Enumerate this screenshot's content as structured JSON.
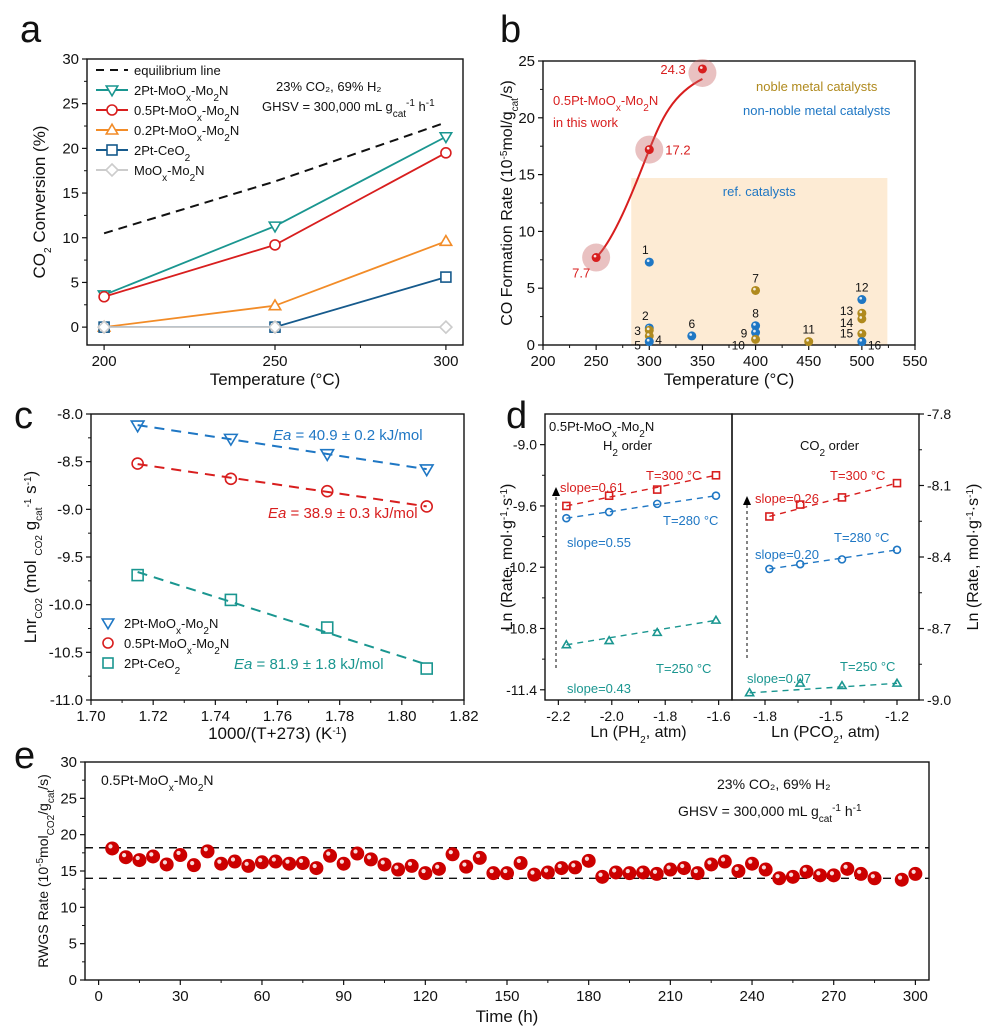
{
  "chart_data": [
    {
      "panel": "a",
      "type": "line",
      "title": "",
      "xlabel": "Temperature (°C)",
      "ylabel": "CO2 Conversion (%)",
      "xlim": [
        195,
        305
      ],
      "ylim": [
        -2,
        30
      ],
      "xticks": [
        200,
        250,
        300
      ],
      "yticks": [
        0,
        5,
        10,
        15,
        20,
        25,
        30
      ],
      "x": [
        200,
        250,
        300
      ],
      "annotations": [
        "23% CO2, 69% H2",
        "GHSV = 300,000 mL gcat-1 h-1"
      ],
      "legend_position": "top-left",
      "series": [
        {
          "name": "equilibrium line",
          "style": "dashed",
          "color": "#111111",
          "marker": "none",
          "values": [
            10.5,
            16.3,
            22.9
          ]
        },
        {
          "name": "2Pt-MoOx-Mo2N",
          "color": "#1a9690",
          "marker": "triangle-down",
          "values": [
            3.6,
            11.3,
            21.3
          ]
        },
        {
          "name": "0.5Pt-MoOx-Mo2N",
          "color": "#d81e1e",
          "marker": "circle",
          "values": [
            3.4,
            9.2,
            19.5
          ]
        },
        {
          "name": "0.2Pt-MoOx-Mo2N",
          "color": "#f28c28",
          "marker": "triangle-up",
          "values": [
            0.0,
            2.4,
            9.6
          ]
        },
        {
          "name": "2Pt-CeO2",
          "color": "#165a8c",
          "marker": "square",
          "values": [
            0.0,
            0.0,
            5.6
          ]
        },
        {
          "name": "MoOx-Mo2N",
          "color": "#cccccc",
          "marker": "diamond",
          "values": [
            0.0,
            0.0,
            0.0
          ]
        }
      ]
    },
    {
      "panel": "b",
      "type": "scatter",
      "xlabel": "Temperature (°C)",
      "ylabel": "CO Formation Rate (10^-5 mol/gcat/s)",
      "xlim": [
        200,
        550
      ],
      "ylim": [
        0,
        25
      ],
      "xticks": [
        200,
        250,
        300,
        350,
        400,
        450,
        500,
        550
      ],
      "yticks": [
        0,
        5,
        10,
        15,
        20,
        25
      ],
      "legend": [
        {
          "name": "noble metal catalysts",
          "color": "#b08a1e"
        },
        {
          "name": "non-noble metal catalysts",
          "color": "#1f77c4"
        }
      ],
      "highlight_label": [
        "0.5Pt-MoOx-Mo2N",
        "in this work"
      ],
      "ref_box_label": "ref. catalysts",
      "this_work": {
        "name": "0.5Pt-MoOx-Mo2N",
        "color": "#d81e1e",
        "points": [
          {
            "x": 250,
            "y": 7.7,
            "label": "7.7"
          },
          {
            "x": 300,
            "y": 17.2,
            "label": "17.2"
          },
          {
            "x": 350,
            "y": 24.3,
            "label": "24.3"
          }
        ]
      },
      "ref_points": [
        {
          "id": "1",
          "x": 300,
          "y": 7.3,
          "type": "non-noble"
        },
        {
          "id": "2",
          "x": 300,
          "y": 1.5,
          "type": "non-noble"
        },
        {
          "id": "3",
          "x": 300,
          "y": 1.3,
          "type": "noble"
        },
        {
          "id": "4",
          "x": 300,
          "y": 0.8,
          "type": "noble"
        },
        {
          "id": "5",
          "x": 300,
          "y": 0.3,
          "type": "non-noble"
        },
        {
          "id": "6",
          "x": 340,
          "y": 0.8,
          "type": "non-noble"
        },
        {
          "id": "7",
          "x": 400,
          "y": 4.8,
          "type": "noble"
        },
        {
          "id": "8",
          "x": 400,
          "y": 1.7,
          "type": "non-noble"
        },
        {
          "id": "9",
          "x": 400,
          "y": 1.1,
          "type": "non-noble"
        },
        {
          "id": "10",
          "x": 400,
          "y": 0.5,
          "type": "noble"
        },
        {
          "id": "11",
          "x": 450,
          "y": 0.3,
          "type": "noble"
        },
        {
          "id": "12",
          "x": 500,
          "y": 4.0,
          "type": "non-noble"
        },
        {
          "id": "13",
          "x": 500,
          "y": 2.8,
          "type": "noble"
        },
        {
          "id": "14",
          "x": 500,
          "y": 2.3,
          "type": "noble"
        },
        {
          "id": "15",
          "x": 500,
          "y": 1.0,
          "type": "noble"
        },
        {
          "id": "16",
          "x": 500,
          "y": 0.3,
          "type": "non-noble"
        }
      ]
    },
    {
      "panel": "c",
      "type": "scatter",
      "xlabel": "1000/(T+273) (K-1)",
      "ylabel": "LnrCO2 (mol CO2 gcat-1 s-1)",
      "xlim": [
        1.7,
        1.82
      ],
      "ylim": [
        -11.0,
        -8.0
      ],
      "xticks": [
        1.7,
        1.72,
        1.74,
        1.76,
        1.78,
        1.8,
        1.82
      ],
      "yticks": [
        -11.0,
        -10.5,
        -10.0,
        -9.5,
        -9.0,
        -8.5,
        -8.0
      ],
      "legend_position": "bottom-left",
      "series": [
        {
          "name": "2Pt-MoOx-Mo2N",
          "color": "#1f77c4",
          "marker": "triangle-down",
          "x": [
            1.715,
            1.745,
            1.776,
            1.808
          ],
          "values": [
            -8.12,
            -8.26,
            -8.42,
            -8.58
          ],
          "fit_label": "Ea = 40.9 ± 0.2 kJ/mol"
        },
        {
          "name": "0.5Pt-MoOx-Mo2N",
          "color": "#d81e1e",
          "marker": "circle",
          "x": [
            1.715,
            1.745,
            1.776,
            1.808
          ],
          "values": [
            -8.52,
            -8.68,
            -8.81,
            -8.97
          ],
          "fit_label": "Ea = 38.9 ± 0.3 kJ/mol"
        },
        {
          "name": "2Pt-CeO2",
          "color": "#1a9690",
          "marker": "square",
          "x": [
            1.715,
            1.745,
            1.776,
            1.808
          ],
          "values": [
            -9.69,
            -9.95,
            -10.24,
            -10.67
          ],
          "fit_label": "Ea = 81.9 ± 1.8 kJ/mol"
        }
      ]
    },
    {
      "panel": "d",
      "type": "scatter",
      "sample_label": "0.5Pt-MoOx-Mo2N",
      "subplots": [
        {
          "title": "H2 order",
          "xlabel": "Ln (PH2, atm)",
          "ylabel": "Ln (Rate, mol·g-1·s-1)",
          "xlim": [
            -2.25,
            -1.55
          ],
          "ylim": [
            -11.5,
            -8.7
          ],
          "xticks": [
            -2.2,
            -2.0,
            -1.8,
            -1.6
          ],
          "yticks": [
            -11.4,
            -10.8,
            -10.2,
            -9.6,
            -9.0
          ],
          "series": [
            {
              "name": "T=300 °C",
              "slope_label": "slope=0.61",
              "color": "#d81e1e",
              "marker": "square",
              "x": [
                -2.17,
                -2.01,
                -1.83,
                -1.61
              ],
              "values": [
                -9.6,
                -9.5,
                -9.44,
                -9.3
              ]
            },
            {
              "name": "T=280 °C",
              "slope_label": "slope=0.55",
              "color": "#1f77c4",
              "marker": "circle",
              "x": [
                -2.17,
                -2.01,
                -1.83,
                -1.61
              ],
              "values": [
                -9.72,
                -9.66,
                -9.58,
                -9.5
              ]
            },
            {
              "name": "T=250 °C",
              "slope_label": "slope=0.43",
              "color": "#1a9690",
              "marker": "triangle-up",
              "x": [
                -2.17,
                -2.01,
                -1.83,
                -1.61
              ],
              "values": [
                -10.96,
                -10.92,
                -10.84,
                -10.72
              ]
            }
          ]
        },
        {
          "title": "CO2 order",
          "xlabel": "Ln (PCO2, atm)",
          "ylabel": "Ln (Rate, mol·g-1·s-1)",
          "xlim": [
            -1.95,
            -1.1
          ],
          "ylim": [
            -9.0,
            -7.8
          ],
          "xticks": [
            -1.8,
            -1.5,
            -1.2
          ],
          "yticks": [
            -9.0,
            -8.7,
            -8.4,
            -8.1,
            -7.8
          ],
          "series": [
            {
              "name": "T=300 °C",
              "slope_label": "slope=0.26",
              "color": "#d81e1e",
              "marker": "square",
              "x": [
                -1.78,
                -1.64,
                -1.45,
                -1.2
              ],
              "values": [
                -8.23,
                -8.18,
                -8.15,
                -8.09
              ]
            },
            {
              "name": "T=280 °C",
              "slope_label": "slope=0.20",
              "color": "#1f77c4",
              "marker": "circle",
              "x": [
                -1.78,
                -1.64,
                -1.45,
                -1.2
              ],
              "values": [
                -8.45,
                -8.43,
                -8.41,
                -8.37
              ]
            },
            {
              "name": "T=250 °C",
              "slope_label": "slope=0.07",
              "color": "#1a9690",
              "marker": "triangle-up",
              "x": [
                -1.87,
                -1.64,
                -1.45,
                -1.2
              ],
              "values": [
                -8.97,
                -8.93,
                -8.94,
                -8.93
              ]
            }
          ]
        }
      ]
    },
    {
      "panel": "e",
      "type": "scatter",
      "xlabel": "Time (h)",
      "ylabel": "RWGS Rate (10^-5 molCO2/gcat/s)",
      "xlim": [
        -5,
        305
      ],
      "ylim": [
        0,
        30
      ],
      "xticks": [
        0,
        30,
        60,
        90,
        120,
        150,
        180,
        210,
        240,
        270,
        300
      ],
      "yticks": [
        0,
        5,
        10,
        15,
        20,
        25,
        30
      ],
      "sample_label": "0.5Pt-MoOx-Mo2N",
      "annotations": [
        "23% CO2, 69% H2",
        "GHSV = 300,000 mL gcat-1 h-1"
      ],
      "reference_lines": [
        18.2,
        14.0
      ],
      "color": "#cc0000",
      "x": [
        5,
        10,
        15,
        20,
        25,
        30,
        35,
        40,
        45,
        50,
        55,
        60,
        65,
        70,
        75,
        80,
        85,
        90,
        95,
        100,
        105,
        110,
        115,
        120,
        125,
        130,
        135,
        140,
        145,
        150,
        155,
        160,
        165,
        170,
        175,
        180,
        185,
        190,
        195,
        200,
        205,
        210,
        215,
        220,
        225,
        230,
        235,
        240,
        245,
        250,
        255,
        260,
        265,
        270,
        275,
        280,
        285,
        295,
        300
      ],
      "values": [
        18.1,
        16.9,
        16.5,
        17.0,
        15.9,
        17.2,
        15.8,
        17.7,
        16.0,
        16.3,
        15.7,
        16.2,
        16.3,
        16.0,
        16.1,
        15.4,
        17.1,
        16.0,
        17.4,
        16.6,
        15.9,
        15.2,
        15.7,
        14.7,
        15.3,
        17.3,
        15.6,
        16.8,
        14.7,
        14.7,
        16.1,
        14.5,
        14.8,
        15.4,
        15.5,
        16.4,
        14.2,
        14.8,
        14.7,
        14.8,
        14.6,
        15.2,
        15.4,
        14.7,
        15.9,
        16.3,
        15.0,
        16.0,
        15.2,
        14.0,
        14.2,
        14.9,
        14.4,
        14.4,
        15.3,
        14.6,
        14.0,
        13.8,
        14.6
      ]
    }
  ],
  "panel_labels": {
    "a": "a",
    "b": "b",
    "c": "c",
    "d": "d",
    "e": "e"
  },
  "text": {
    "a_legend": [
      "equilibrium line",
      "2Pt-MoOx-Mo2N",
      "0.5Pt-MoOx-Mo2N",
      "0.2Pt-MoOx-Mo2N",
      "2Pt-CeO2",
      "MoOx-Mo2N"
    ],
    "a_cond1": "23% CO₂, 69% H₂",
    "a_cond2": "GHSV = 300,000 mL g",
    "a_xlabel": "Temperature (°C)",
    "b_noble": "noble metal catalysts",
    "b_nonnoble": "non-noble metal catalysts",
    "b_thiswork1": "0.5Pt-MoOₓ-Mo₂N",
    "b_thiswork2": "in this work",
    "b_ref": "ref. catalysts",
    "b_xlabel": "Temperature (°C)",
    "c_xlabel": "1000/(T+273) (K",
    "d_sample": "0.5Pt-MoOₓ-Mo₂N",
    "d_h2": "H₂ order",
    "d_co2": "CO₂ order",
    "d_xlabel1": "Ln (PH₂, atm)",
    "d_xlabel2": "Ln (PCO₂, atm)",
    "e_sample": "0.5Pt-MoOₓ-Mo₂N",
    "e_cond1": "23% CO₂, 69% H₂",
    "e_xlabel": "Time (h)"
  }
}
